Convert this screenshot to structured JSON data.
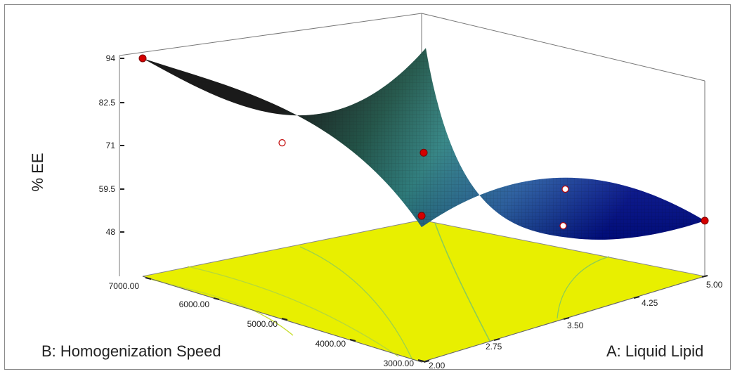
{
  "chart_data": {
    "type": "surface3d",
    "zlabel": "% EE",
    "xlabel": "A: Liquid Lipid",
    "ylabel": "B: Homogenization Speed",
    "z_ticks": [
      "94",
      "82.5",
      "71",
      "59.5",
      "48"
    ],
    "x_ticks": [
      "2.00",
      "2.75",
      "3.50",
      "4.25",
      "5.00"
    ],
    "y_ticks": [
      "3000.00",
      "4000.00",
      "5000.00",
      "6000.00",
      "7000.00"
    ],
    "x_range": [
      2.0,
      5.0
    ],
    "y_range": [
      3000,
      7000
    ],
    "z_range": [
      48,
      94
    ],
    "floor_contour_color": "#e8ef00",
    "surface_colors": [
      "#000000",
      "#0f5a4a",
      "#2a8a8a",
      "#2060c0",
      "#0010a0"
    ],
    "corners": [
      {
        "x": 2.0,
        "y": 7000,
        "z": 94
      },
      {
        "x": 2.0,
        "y": 3000,
        "z": 72
      },
      {
        "x": 5.0,
        "y": 3000,
        "z": 51
      },
      {
        "x": 5.0,
        "y": 7000,
        "z": 74
      }
    ],
    "design_points": [
      {
        "x": 2.0,
        "y": 7000,
        "z": 94,
        "above": true
      },
      {
        "x": 2.0,
        "y": 5000,
        "z": 83,
        "above": false
      },
      {
        "x": 2.0,
        "y": 3000,
        "z": 75,
        "above": true
      },
      {
        "x": 3.5,
        "y": 5000,
        "z": 69,
        "above": true
      },
      {
        "x": 3.5,
        "y": 3000,
        "z": 61,
        "above": false
      },
      {
        "x": 5.0,
        "y": 3000,
        "z": 51,
        "above": true
      },
      {
        "x": 5.0,
        "y": 5000,
        "z": 48,
        "above": false
      }
    ]
  }
}
